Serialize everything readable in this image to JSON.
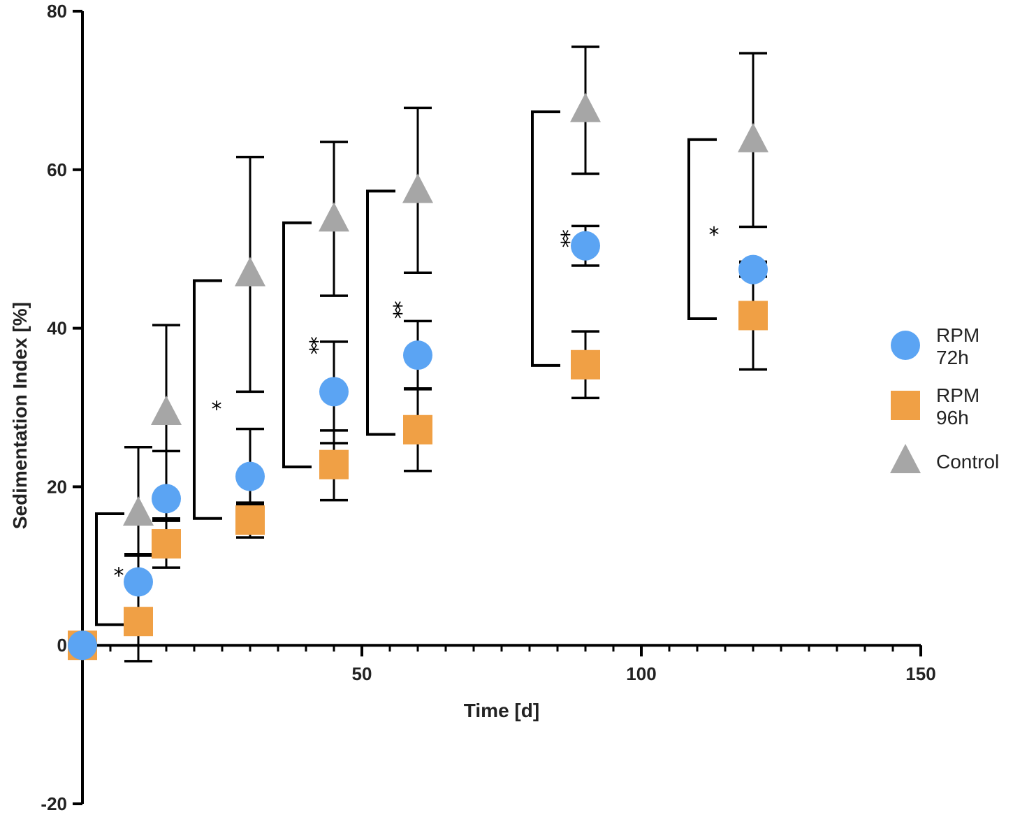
{
  "chart_data": {
    "type": "scatter",
    "title": "",
    "xlabel": "Time [d]",
    "ylabel": "Sedimentation Index [%]",
    "xlim": [
      0,
      150
    ],
    "ylim": [
      -20,
      80
    ],
    "x_ticks": [
      50,
      100,
      150
    ],
    "y_ticks": [
      -20,
      0,
      20,
      40,
      60,
      80
    ],
    "x_minor_step": 5,
    "legend_position": "right",
    "series": [
      {
        "name": "RPM 72h",
        "legend_lines": [
          "RPM",
          "72h"
        ],
        "color": "#5BA4F3",
        "marker": "circle",
        "points": [
          {
            "x": 0,
            "y": 0,
            "err_low": 0,
            "err_high": 0
          },
          {
            "x": 10,
            "y": 8,
            "err_low": 3.5,
            "err_high": 3.5
          },
          {
            "x": 15,
            "y": 18.5,
            "err_low": 2.5,
            "err_high": 6
          },
          {
            "x": 30,
            "y": 21.3,
            "err_low": 3.5,
            "err_high": 6
          },
          {
            "x": 45,
            "y": 32,
            "err_low": 6.5,
            "err_high": 6.3
          },
          {
            "x": 60,
            "y": 36.6,
            "err_low": 4.3,
            "err_high": 4.3
          },
          {
            "x": 90,
            "y": 50.4,
            "err_low": 2.5,
            "err_high": 2.5
          },
          {
            "x": 120,
            "y": 47.4,
            "err_low": 0.9,
            "err_high": 0.9
          }
        ]
      },
      {
        "name": "RPM 96h",
        "legend_lines": [
          "RPM",
          "96h"
        ],
        "color": "#F0A045",
        "marker": "square",
        "points": [
          {
            "x": 0,
            "y": 0,
            "err_low": 0,
            "err_high": 0
          },
          {
            "x": 10,
            "y": 3,
            "err_low": 5,
            "err_high": 1.5
          },
          {
            "x": 15,
            "y": 12.8,
            "err_low": 3,
            "err_high": 3
          },
          {
            "x": 30,
            "y": 15.8,
            "err_low": 2.2,
            "err_high": 2.2
          },
          {
            "x": 45,
            "y": 22.8,
            "err_low": 4.5,
            "err_high": 4.3
          },
          {
            "x": 60,
            "y": 27.2,
            "err_low": 5.2,
            "err_high": 5.2
          },
          {
            "x": 90,
            "y": 35.4,
            "err_low": 4.2,
            "err_high": 4.2
          },
          {
            "x": 120,
            "y": 41.6,
            "err_low": 6.8,
            "err_high": 6.8
          }
        ]
      },
      {
        "name": "Control",
        "legend_lines": [
          "Control"
        ],
        "color": "#A6A6A6",
        "marker": "triangle",
        "points": [
          {
            "x": 10,
            "y": 16.6,
            "err_low": 5.3,
            "err_high": 8.4
          },
          {
            "x": 15,
            "y": 29.3,
            "err_low": 13.6,
            "err_high": 11.1
          },
          {
            "x": 30,
            "y": 46.8,
            "err_low": 14.8,
            "err_high": 14.8
          },
          {
            "x": 45,
            "y": 53.7,
            "err_low": 9.6,
            "err_high": 9.8
          },
          {
            "x": 60,
            "y": 57.3,
            "err_low": 10.3,
            "err_high": 10.5
          },
          {
            "x": 90,
            "y": 67.5,
            "err_low": 8,
            "err_high": 8
          },
          {
            "x": 120,
            "y": 63.7,
            "err_low": 10.9,
            "err_high": 11
          }
        ]
      }
    ],
    "significance_brackets": [
      {
        "x": 2.5,
        "y_top": 16.6,
        "y_bottom": 2.6,
        "label": "*",
        "label_x": 6.5,
        "label_y": 9.5
      },
      {
        "x": 20,
        "y_top": 46,
        "y_bottom": 16,
        "label": "*",
        "label_x": 24,
        "label_y": 30.5
      },
      {
        "x": 36,
        "y_top": 53.3,
        "y_bottom": 22.5,
        "label": "**",
        "label_x": 40,
        "label_y": 38
      },
      {
        "x": 51,
        "y_top": 57.3,
        "y_bottom": 26.6,
        "label": "**",
        "label_x": 55,
        "label_y": 42.5
      },
      {
        "x": 80.5,
        "y_top": 67.3,
        "y_bottom": 35.3,
        "label": "**",
        "label_x": 85,
        "label_y": 51.5
      },
      {
        "x": 108.5,
        "y_top": 63.8,
        "y_bottom": 41.2,
        "label": "*",
        "label_x": 113,
        "label_y": 52.5
      }
    ]
  }
}
